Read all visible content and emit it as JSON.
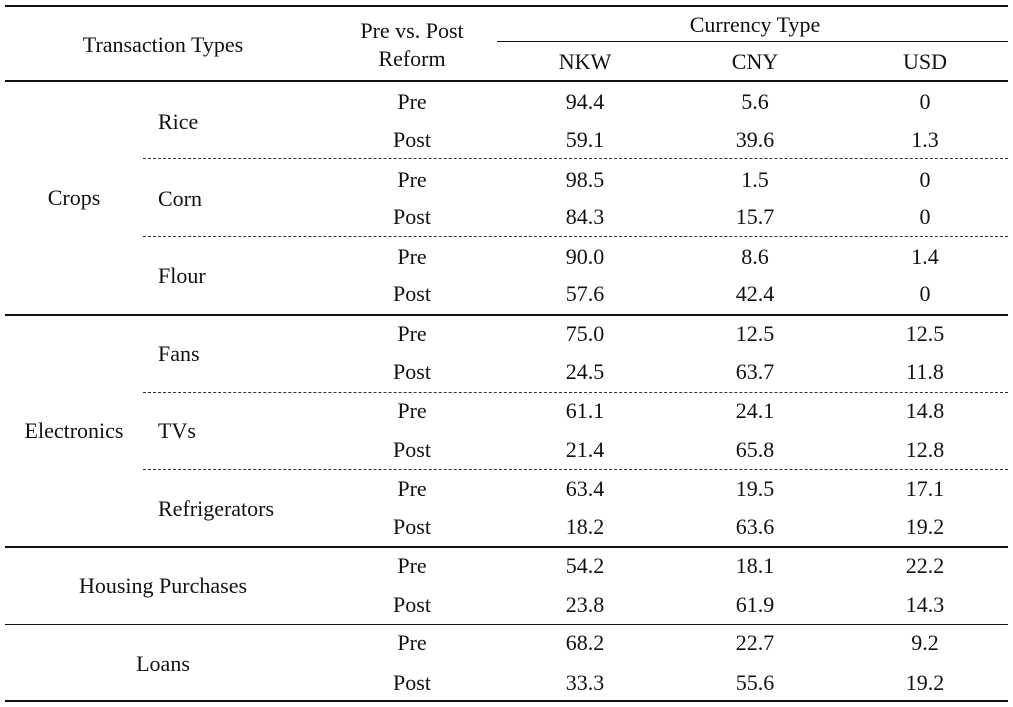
{
  "header": {
    "transaction_types": "Transaction Types",
    "pre_post_line1": "Pre vs. Post",
    "pre_post_line2": "Reform",
    "currency_type": "Currency Type",
    "currencies": [
      "NKW",
      "CNY",
      "USD"
    ]
  },
  "groups": [
    {
      "name": "Crops",
      "items": [
        {
          "name": "Rice",
          "rows": [
            {
              "period": "Pre",
              "values": [
                "94.4",
                "5.6",
                "0"
              ]
            },
            {
              "period": "Post",
              "values": [
                "59.1",
                "39.6",
                "1.3"
              ]
            }
          ]
        },
        {
          "name": "Corn",
          "rows": [
            {
              "period": "Pre",
              "values": [
                "98.5",
                "1.5",
                "0"
              ]
            },
            {
              "period": "Post",
              "values": [
                "84.3",
                "15.7",
                "0"
              ]
            }
          ]
        },
        {
          "name": "Flour",
          "rows": [
            {
              "period": "Pre",
              "values": [
                "90.0",
                "8.6",
                "1.4"
              ]
            },
            {
              "period": "Post",
              "values": [
                "57.6",
                "42.4",
                "0"
              ]
            }
          ]
        }
      ]
    },
    {
      "name": "Electronics",
      "items": [
        {
          "name": "Fans",
          "rows": [
            {
              "period": "Pre",
              "values": [
                "75.0",
                "12.5",
                "12.5"
              ]
            },
            {
              "period": "Post",
              "values": [
                "24.5",
                "63.7",
                "11.8"
              ]
            }
          ]
        },
        {
          "name": "TVs",
          "rows": [
            {
              "period": "Pre",
              "values": [
                "61.1",
                "24.1",
                "14.8"
              ]
            },
            {
              "period": "Post",
              "values": [
                "21.4",
                "65.8",
                "12.8"
              ]
            }
          ]
        },
        {
          "name": "Refrigerators",
          "rows": [
            {
              "period": "Pre",
              "values": [
                "63.4",
                "19.5",
                "17.1"
              ]
            },
            {
              "period": "Post",
              "values": [
                "18.2",
                "63.6",
                "19.2"
              ]
            }
          ]
        }
      ]
    },
    {
      "name": "Housing Purchases",
      "items": [
        {
          "name": "",
          "rows": [
            {
              "period": "Pre",
              "values": [
                "54.2",
                "18.1",
                "22.2"
              ]
            },
            {
              "period": "Post",
              "values": [
                "23.8",
                "61.9",
                "14.3"
              ]
            }
          ]
        }
      ]
    },
    {
      "name": "Loans",
      "items": [
        {
          "name": "",
          "rows": [
            {
              "period": "Pre",
              "values": [
                "68.2",
                "22.7",
                "9.2"
              ]
            },
            {
              "period": "Post",
              "values": [
                "33.3",
                "55.6",
                "19.2"
              ]
            }
          ]
        }
      ]
    }
  ]
}
